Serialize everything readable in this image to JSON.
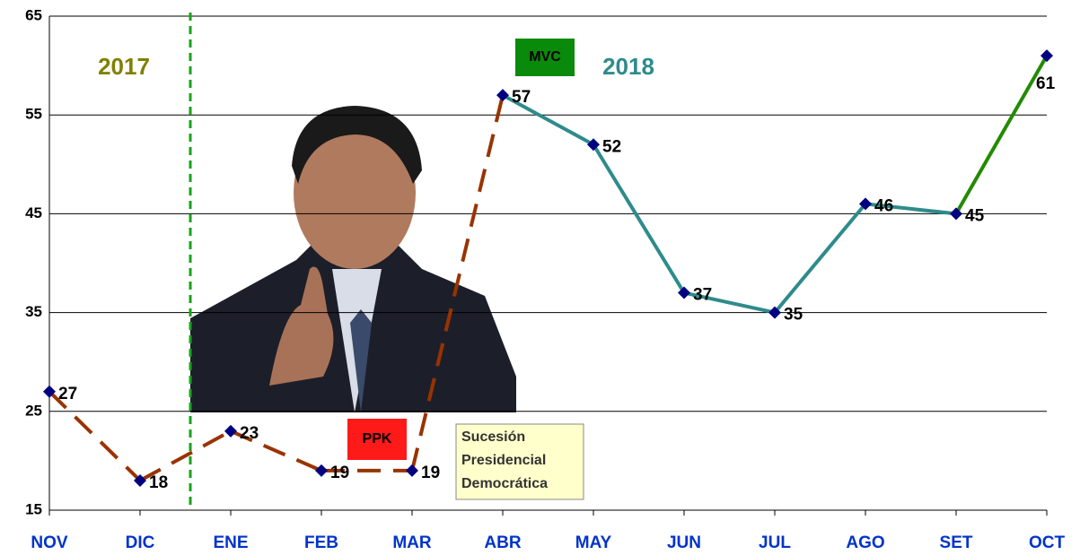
{
  "chart_data": {
    "type": "line",
    "categories": [
      "NOV",
      "DIC",
      "ENE",
      "FEB",
      "MAR",
      "ABR",
      "MAY",
      "JUN",
      "JUL",
      "AGO",
      "SET",
      "OCT"
    ],
    "values": [
      27,
      18,
      23,
      19,
      19,
      57,
      52,
      37,
      35,
      46,
      45,
      61
    ],
    "marker_color": "#000080",
    "segment_colors": [
      "#993300",
      "#993300",
      "#993300",
      "#993300",
      "#993300",
      "#2e8b8b",
      "#2e8b8b",
      "#2e8b8b",
      "#2e8b8b",
      "#2e8b8b",
      "#228b00"
    ],
    "segment_dashed": [
      true,
      true,
      true,
      true,
      true,
      false,
      false,
      false,
      false,
      false,
      false
    ],
    "ylim": [
      15,
      65
    ],
    "yticks": [
      15,
      25,
      35,
      45,
      55,
      65
    ],
    "grid": true,
    "annotations": {
      "year_left": "2017",
      "year_right": "2018",
      "label_mvc": "MVC",
      "label_ppk": "PPK",
      "note": [
        "Sucesión",
        "Presidencial",
        "Democrática"
      ]
    }
  }
}
